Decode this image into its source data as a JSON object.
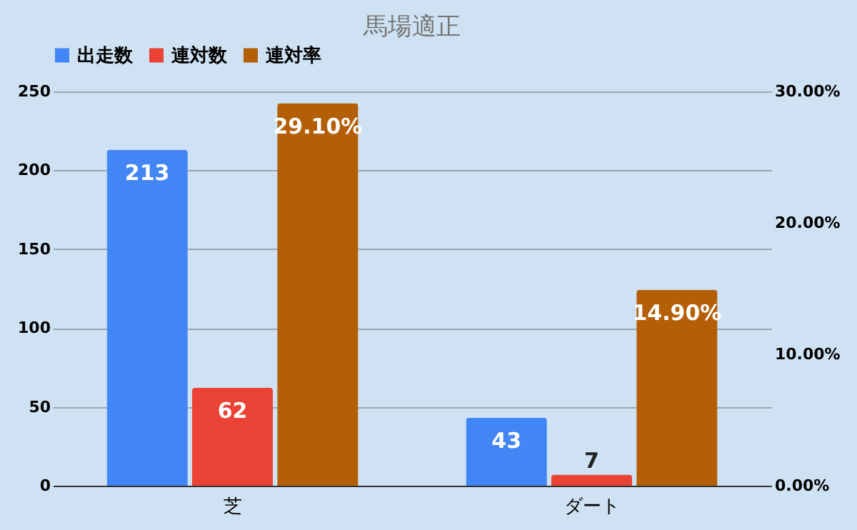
{
  "chart_data": {
    "type": "bar",
    "title": "馬場適正",
    "categories": [
      "芝",
      "ダート"
    ],
    "series": [
      {
        "name": "出走数",
        "color": "#4285f4",
        "values": [
          213,
          43
        ],
        "value_labels": [
          "213",
          "43"
        ]
      },
      {
        "name": "連対数",
        "color": "#ea4335",
        "values": [
          62,
          7
        ],
        "value_labels": [
          "62",
          "7"
        ]
      },
      {
        "name": "連対率",
        "color": "#b45f06",
        "values": [
          29.1,
          14.9
        ],
        "value_labels": [
          "29.10%",
          "14.90%"
        ],
        "axis": "y2"
      }
    ],
    "ylim": [
      0,
      250
    ],
    "yticks": [
      0,
      50,
      100,
      150,
      200,
      250
    ],
    "y2lim": [
      0,
      30
    ],
    "y2ticks": [
      {
        "value": 0,
        "label": "0.00%"
      },
      {
        "value": 10,
        "label": "10.00%"
      },
      {
        "value": 20,
        "label": "20.00%"
      },
      {
        "value": 30,
        "label": "30.00%"
      }
    ],
    "grid": "y",
    "legend": "top"
  }
}
